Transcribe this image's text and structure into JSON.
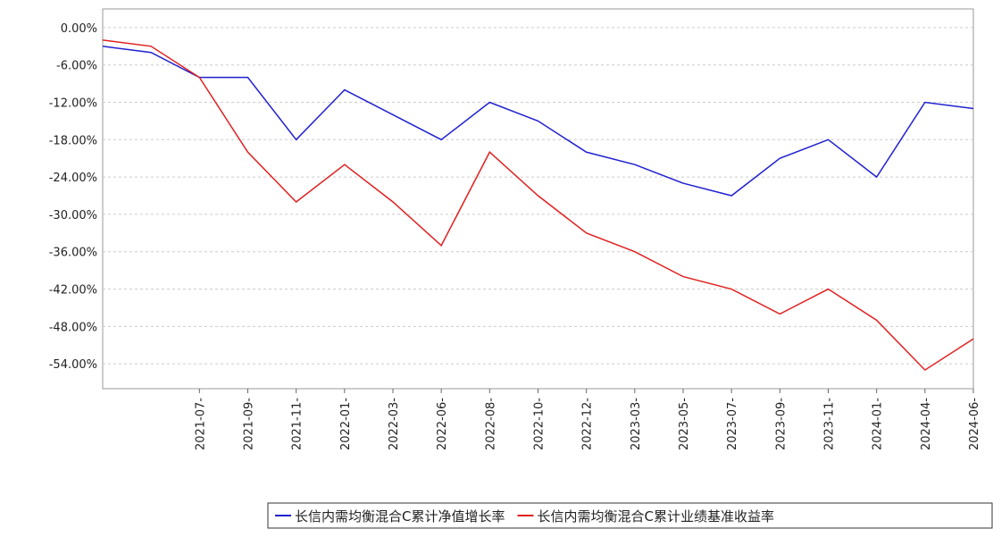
{
  "chart_data": {
    "type": "line",
    "categories": [
      null,
      null,
      "2021-07-",
      "2021-09-",
      "2021-11-",
      "2022-01-",
      "2022-03-",
      "2022-06-",
      "2022-08-",
      "2022-10-",
      "2022-12-",
      "2023-03-",
      "2023-05-",
      "2023-07-",
      "2023-09-",
      "2023-11-",
      "2024-01-",
      "2024-04-",
      "2024-06-"
    ],
    "series": [
      {
        "name": "长信内需均衡混合C累计净值增长率",
        "color": "#2020d0",
        "values": [
          -3,
          -4,
          -8,
          -8,
          -18,
          -10,
          -14,
          -18,
          -12,
          -15,
          -20,
          -22,
          -25,
          -27,
          -21,
          -18,
          -24,
          -12,
          -13
        ]
      },
      {
        "name": "长信内需均衡混合C累计业绩基准收益率",
        "color": "#e02020",
        "values": [
          -2,
          -3,
          -8,
          -20,
          -28,
          -22,
          -28,
          -35,
          -20,
          -27,
          -33,
          -36,
          -40,
          -42,
          -46,
          -42,
          -47,
          -55,
          -50
        ]
      }
    ],
    "ylim": [
      -58,
      3
    ],
    "yticks": [
      {
        "value": 0,
        "label": "0.00%"
      },
      {
        "value": -6,
        "label": "-6.00%"
      },
      {
        "value": -12,
        "label": "-12.00%"
      },
      {
        "value": -18,
        "label": "-18.00%"
      },
      {
        "value": -24,
        "label": "-24.00%"
      },
      {
        "value": -30,
        "label": "-30.00%"
      },
      {
        "value": -36,
        "label": "-36.00%"
      },
      {
        "value": -42,
        "label": "-42.00%"
      },
      {
        "value": -48,
        "label": "-48.00%"
      },
      {
        "value": -54,
        "label": "-54.00%"
      }
    ],
    "grid": true
  }
}
